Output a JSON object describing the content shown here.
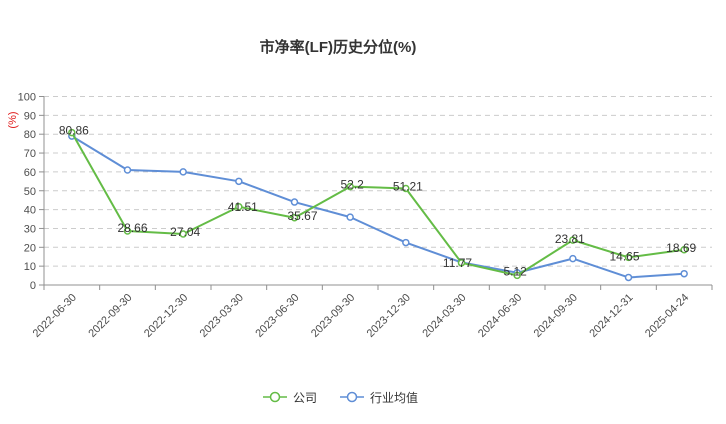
{
  "chart_data": {
    "type": "line",
    "title": "市净率(LF)历史分位(%)",
    "categories": [
      "2022-06-30",
      "2022-09-30",
      "2022-12-30",
      "2023-03-30",
      "2023-06-30",
      "2023-09-30",
      "2023-12-30",
      "2024-03-30",
      "2024-06-30",
      "2024-09-30",
      "2024-12-31",
      "2025-04-24"
    ],
    "series": [
      {
        "name": "公司",
        "key": "company",
        "color": "#64bc46",
        "values": [
          80.86,
          28.66,
          27.04,
          41.51,
          35.67,
          52.2,
          51.21,
          11.77,
          5.12,
          23.81,
          14.65,
          18.69
        ],
        "labels_shown": true
      },
      {
        "name": "行业均值",
        "key": "industry-average",
        "color": "#5f8ed6",
        "values": [
          79,
          61,
          60,
          55,
          44,
          36,
          22.5,
          12,
          6.5,
          14,
          4,
          6
        ],
        "labels_shown": false
      }
    ],
    "xlabel": "",
    "ylabel": "(%)",
    "ylim": [
      0,
      100
    ],
    "ytick_step": 10,
    "grid": "horizontal-dashed",
    "legend_position": "bottom-center"
  },
  "colors": {
    "background": "#ffffff",
    "axis": "#909090",
    "grid": "#cccccc",
    "tick_text": "#4d4d4d",
    "label_text": "#333333",
    "title_text": "#333333",
    "ylabel_red": "#e02020"
  }
}
